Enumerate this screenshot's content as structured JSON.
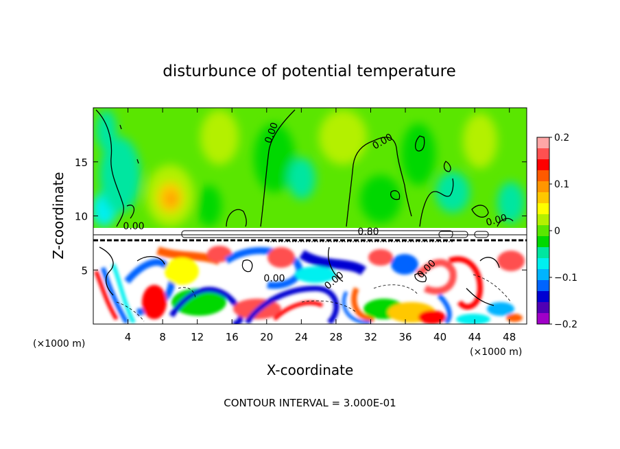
{
  "chart_data": {
    "type": "heatmap",
    "title": "disturbunce of potential temperature",
    "xlabel": "X-coordinate",
    "ylabel": "Z-coordinate",
    "x_unit_left": "(×1000 m)",
    "x_unit_right": "(×1000 m)",
    "xlim": [
      0,
      50
    ],
    "ylim": [
      0,
      20
    ],
    "x_ticks": [
      4,
      8,
      12,
      16,
      20,
      24,
      28,
      32,
      36,
      40,
      44,
      48
    ],
    "y_ticks": [
      5,
      10,
      15
    ],
    "colorbar": {
      "range": [
        -0.2,
        0.2
      ],
      "tick_values": [
        0.2,
        0.1,
        0,
        -0.1,
        -0.2
      ],
      "tick_labels": [
        "0.2",
        "0.1",
        "0",
        "−0.1",
        "−0.2"
      ],
      "colors": [
        "#ffa6a6",
        "#ff5050",
        "#ff0000",
        "#ff5a00",
        "#ff9600",
        "#ffc800",
        "#ffff00",
        "#b4f000",
        "#5ae600",
        "#00d800",
        "#00e6a0",
        "#00f0f0",
        "#00b4ff",
        "#0064ff",
        "#0000d2",
        "#5000b4",
        "#a000c8"
      ]
    },
    "contour_labels": [
      "0.00",
      "0.00",
      "0.00",
      "0.80",
      "0.00",
      "0.00",
      "0.00",
      "0.00"
    ],
    "footer": "CONTOUR INTERVAL = 3.000E-01"
  }
}
